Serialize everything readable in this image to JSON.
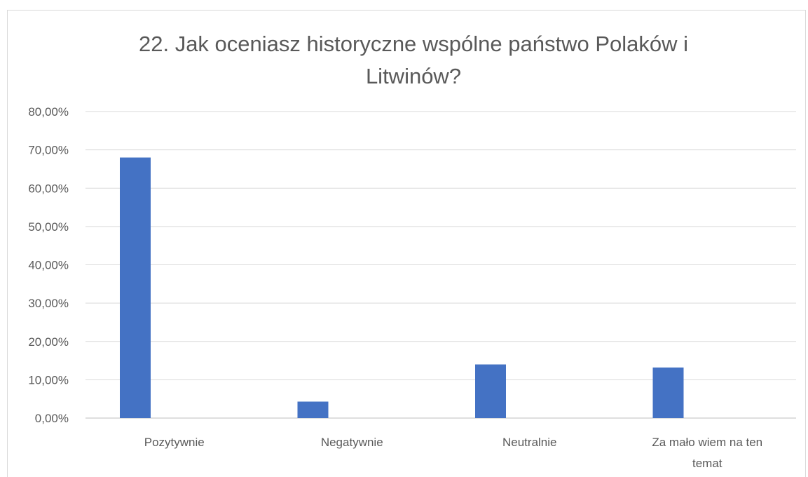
{
  "chart_data": {
    "type": "bar",
    "title": "22. Jak oceniasz historyczne wspólne państwo Polaków i Litwinów?",
    "categories": [
      "Pozytywnie",
      "Negatywnie",
      "Neutralnie",
      "Za mało wiem na ten temat"
    ],
    "category_label_lines": [
      [
        "Pozytywnie"
      ],
      [
        "Negatywnie"
      ],
      [
        "Neutralnie"
      ],
      [
        "Za mało wiem na ten",
        "temat"
      ]
    ],
    "series": [
      {
        "values": [
          68.0,
          4.3,
          14.0,
          13.2
        ]
      }
    ],
    "ylim": [
      0,
      80
    ],
    "yticks": [
      0,
      10,
      20,
      30,
      40,
      50,
      60,
      70,
      80
    ],
    "ytick_labels": [
      "0,00%",
      "10,00%",
      "20,00%",
      "30,00%",
      "40,00%",
      "50,00%",
      "60,00%",
      "70,00%",
      "80,00%"
    ],
    "xlabel": "",
    "ylabel": "",
    "grid": true,
    "legend": "none",
    "bar_color": "#4472c4",
    "grid_color": "#d9d9d9",
    "text_color": "#595959"
  }
}
